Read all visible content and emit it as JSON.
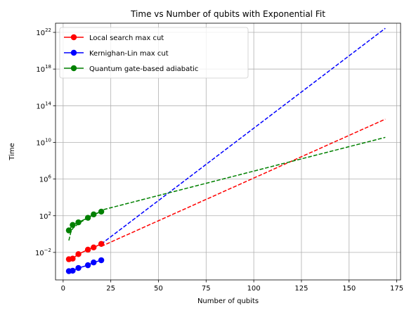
{
  "chart_data": {
    "type": "line",
    "title": "Time vs Number of qubits with Exponential Fit",
    "xlabel": "Number of qubits",
    "ylabel": "Time",
    "xlim": [
      -4,
      177
    ],
    "ylim_log10": [
      -5,
      23
    ],
    "y_scale": "log",
    "grid": true,
    "legend_position": "top-left",
    "x_ticks": [
      "0",
      "25",
      "50",
      "75",
      "100",
      "125",
      "150",
      "175"
    ],
    "x_tick_values": [
      0,
      25,
      50,
      75,
      100,
      125,
      150,
      175
    ],
    "y_ticks": [
      {
        "exp": -2,
        "base": "10",
        "power": "−2"
      },
      {
        "exp": 2,
        "base": "10",
        "power": "2"
      },
      {
        "exp": 6,
        "base": "10",
        "power": "6"
      },
      {
        "exp": 10,
        "base": "10",
        "power": "10"
      },
      {
        "exp": 14,
        "base": "10",
        "power": "14"
      },
      {
        "exp": 18,
        "base": "10",
        "power": "18"
      },
      {
        "exp": 22,
        "base": "10",
        "power": "22"
      }
    ],
    "series": [
      {
        "name": "Local search max cut",
        "color": "#ff0000",
        "points": [
          [
            3,
            0.0018
          ],
          [
            5,
            0.0021
          ],
          [
            8,
            0.0065
          ],
          [
            13,
            0.02
          ],
          [
            16,
            0.035
          ],
          [
            20,
            0.085
          ]
        ],
        "fit": {
          "log10_a": -3.2,
          "log10_b": 0.0931,
          "x_start": 20,
          "x_end": 169
        }
      },
      {
        "name": "Kernighan-Lin max cut",
        "color": "#0000ff",
        "points": [
          [
            3,
            9e-05
          ],
          [
            5,
            0.0001
          ],
          [
            8,
            0.0002
          ],
          [
            13,
            0.0004
          ],
          [
            16,
            0.0008
          ],
          [
            20,
            0.0014
          ]
        ],
        "fit": {
          "log10_a": -4.24,
          "log10_b": 0.1579,
          "x_start": 20,
          "x_end": 169
        }
      },
      {
        "name": "Quantum gate-based adiabatic",
        "color": "#008000",
        "points": [
          [
            3,
            2.5
          ],
          [
            5,
            10
          ],
          [
            8,
            19
          ],
          [
            13,
            60
          ],
          [
            16,
            140
          ],
          [
            20,
            280
          ]
        ],
        "fit": {
          "log10_a": 1.54,
          "log10_b": 0.0533,
          "x_start": 20,
          "x_end": 169
        },
        "early_fit": [
          [
            3,
            0.2
          ],
          [
            4,
            1.5
          ],
          [
            5,
            4
          ],
          [
            8,
            14
          ],
          [
            13,
            60
          ],
          [
            16,
            130
          ],
          [
            20,
            280
          ]
        ]
      }
    ]
  }
}
